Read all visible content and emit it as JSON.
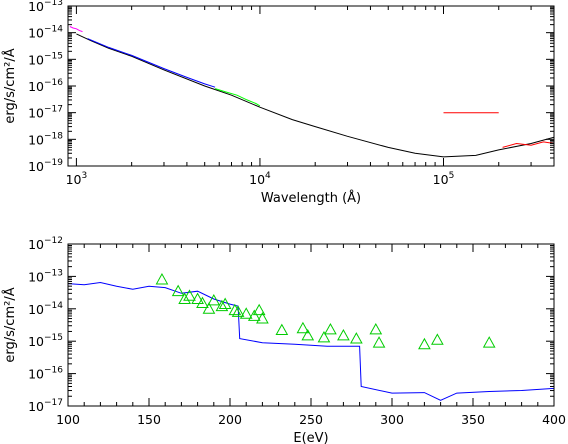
{
  "chart_data": [
    {
      "type": "line",
      "xscale": "log",
      "yscale": "log",
      "xlabel": "Wavelength (Å)",
      "ylabel": "erg/s/cm²/Å",
      "xlim": [
        900,
        400000
      ],
      "ylim": [
        1e-19,
        1e-13
      ],
      "x_ticks": [
        {
          "value": 1000,
          "base": "10",
          "exp": "3"
        },
        {
          "value": 10000,
          "base": "10",
          "exp": "4"
        },
        {
          "value": 100000,
          "base": "10",
          "exp": "5"
        }
      ],
      "y_ticks": [
        {
          "value": 1e-13,
          "base": "10",
          "exp": "−13"
        },
        {
          "value": 1e-14,
          "base": "10",
          "exp": "−14"
        },
        {
          "value": 1e-15,
          "base": "10",
          "exp": "−15"
        },
        {
          "value": 1e-16,
          "base": "10",
          "exp": "−16"
        },
        {
          "value": 1e-17,
          "base": "10",
          "exp": "−17"
        },
        {
          "value": 1e-18,
          "base": "10",
          "exp": "−18"
        },
        {
          "value": 1e-19,
          "base": "10",
          "exp": "−19"
        }
      ],
      "grid": false,
      "series": [
        {
          "color": "#000000",
          "x": [
            1000,
            1200,
            1500,
            2000,
            3000,
            5000,
            7000,
            10000,
            15000,
            20000,
            30000,
            50000,
            70000,
            100000,
            150000,
            200000,
            300000,
            400000
          ],
          "y": [
            9e-15,
            5e-15,
            2.6e-15,
            1.3e-15,
            4e-16,
            1e-16,
            4.5e-17,
            1.6e-17,
            5.5e-18,
            3e-18,
            1.3e-18,
            5e-19,
            3e-19,
            2.2e-19,
            2.5e-19,
            4e-19,
            7e-19,
            1.2e-18
          ]
        },
        {
          "color": "#ff00ff",
          "x": [
            920,
            960,
            1000,
            1040,
            1080
          ],
          "y": [
            1.7e-14,
            1.5e-14,
            1.4e-14,
            1.2e-14,
            1.1e-14
          ]
        },
        {
          "color": "#0000ff",
          "x": [
            1150,
            1500,
            2000,
            3000,
            4000,
            5000,
            5700
          ],
          "y": [
            6e-15,
            2.8e-15,
            1.4e-15,
            4.5e-16,
            2.1e-16,
            1.2e-16,
            9e-17
          ]
        },
        {
          "color": "#00ff00",
          "x": [
            5700,
            6500,
            7500,
            8500,
            9500,
            10000
          ],
          "y": [
            8e-17,
            6e-17,
            4.5e-17,
            3e-17,
            2.2e-17,
            1.8e-17
          ]
        },
        {
          "color": "#ff0000",
          "x": [
            100000,
            120000,
            150000,
            180000,
            200000
          ],
          "y": [
            1e-17,
            1e-17,
            1e-17,
            1e-17,
            1e-17
          ]
        },
        {
          "color": "#ff0000",
          "x": [
            210000,
            250000,
            300000,
            350000,
            400000
          ],
          "y": [
            5e-19,
            7e-19,
            6e-19,
            8e-19,
            7e-19
          ]
        }
      ]
    },
    {
      "type": "line",
      "yscale": "log",
      "xlabel": "E(eV)",
      "ylabel": "erg/s/cm²/Å",
      "xlim": [
        100,
        400
      ],
      "ylim": [
        1e-17,
        1e-12
      ],
      "x_ticks": [
        100,
        150,
        200,
        250,
        300,
        350,
        400
      ],
      "y_ticks": [
        {
          "value": 1e-12,
          "base": "10",
          "exp": "−12"
        },
        {
          "value": 1e-13,
          "base": "10",
          "exp": "−13"
        },
        {
          "value": 1e-14,
          "base": "10",
          "exp": "−14"
        },
        {
          "value": 1e-15,
          "base": "10",
          "exp": "−15"
        },
        {
          "value": 1e-16,
          "base": "10",
          "exp": "−16"
        },
        {
          "value": 1e-17,
          "base": "10",
          "exp": "−17"
        }
      ],
      "grid": false,
      "series": [
        {
          "color": "#0000ff",
          "x": [
            100,
            110,
            120,
            130,
            140,
            150,
            160,
            170,
            180,
            190,
            200,
            205,
            206,
            220,
            240,
            260,
            280,
            281,
            300,
            320,
            330,
            340,
            360,
            380,
            400
          ],
          "y": [
            6e-14,
            5.5e-14,
            6.5e-14,
            5e-14,
            4e-14,
            5e-14,
            4.5e-14,
            3e-14,
            3.5e-14,
            2e-14,
            1.4e-14,
            1.2e-14,
            1.2e-15,
            9e-16,
            8e-16,
            7e-16,
            7e-16,
            4e-17,
            2.5e-17,
            2.6e-17,
            1.5e-17,
            2.5e-17,
            2.8e-17,
            3e-17,
            3.5e-17
          ]
        },
        {
          "type": "scatter",
          "marker": "triangle",
          "color": "#00cc00",
          "x": [
            158,
            168,
            172,
            175,
            180,
            183,
            187,
            190,
            195,
            197,
            203,
            205,
            210,
            215,
            218,
            220,
            232,
            245,
            248,
            258,
            262,
            270,
            278,
            290,
            292,
            320,
            328,
            360
          ],
          "y": [
            8e-14,
            3.5e-14,
            2e-14,
            2.5e-14,
            2e-14,
            1.5e-14,
            1e-14,
            1.8e-14,
            1.2e-14,
            1.4e-14,
            9e-15,
            8e-15,
            7e-15,
            6e-15,
            9e-15,
            5e-15,
            2.2e-15,
            2.5e-15,
            1.5e-15,
            1.3e-15,
            2.3e-15,
            1.5e-15,
            1.2e-15,
            2.3e-15,
            9e-16,
            8e-16,
            1.1e-15,
            9e-16
          ]
        }
      ]
    }
  ]
}
